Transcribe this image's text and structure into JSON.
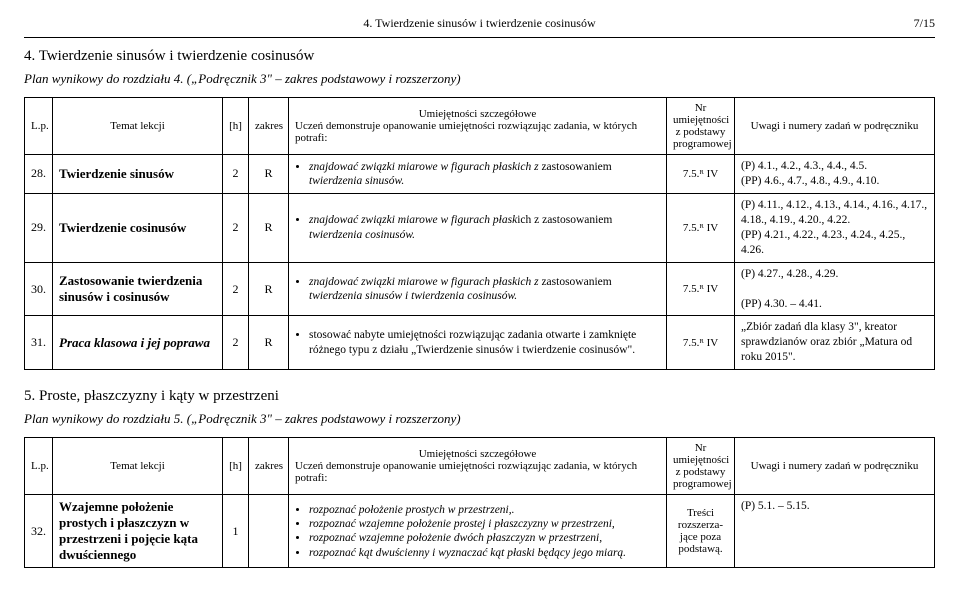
{
  "header": {
    "running_title": "4. Twierdzenie sinusów i twierdzenie cosinusów",
    "page_num": "7/15"
  },
  "section4": {
    "title": "4. Twierdzenie sinusów i twierdzenie cosinusów",
    "plan_line": "Plan wynikowy do rozdziału 4. („Podręcznik 3\" – zakres podstawowy i rozszerzony)",
    "header_row": {
      "lp": "L.p.",
      "topic": "Temat lekcji",
      "hours": "[h]",
      "zakres": "zakres",
      "skills_top": "Umiejętności szczegółowe",
      "skills_sub": "Uczeń demonstruje opanowanie umiejętności rozwiązując zadania, w których potrafi:",
      "nr_top": "Nr",
      "nr_sub": "umiejętności z podstawy programowej",
      "notes": "Uwagi i numery zadań w podręczniku"
    },
    "rows": [
      {
        "lp": "28.",
        "topic_bold": "Twierdzenie sinusów",
        "hours": "2",
        "zakres": "R",
        "skill_pre": "znajdować związki miarowe w figurach płaskich z ",
        "skill_up": "zastosowaniem",
        "skill_post": " twierdzenia sinusów.",
        "nr": "7.5.ᴿ IV",
        "notes": "(P) 4.1., 4.2., 4.3., 4.4., 4.5.\n(PP) 4.6., 4.7., 4.8., 4.9., 4.10."
      },
      {
        "lp": "29.",
        "topic_bold": "Twierdzenie cosinusów",
        "hours": "2",
        "zakres": "R",
        "skill_pre": "znajdować związki miarowe w figurach płask",
        "skill_up": "ich z zastosowaniem",
        "skill_post": " twierdzenia cosinusów.",
        "nr": "7.5.ᴿ IV",
        "notes": "(P) 4.11., 4.12., 4.13., 4.14., 4.16., 4.17., 4.18., 4.19., 4.20., 4.22.\n(PP) 4.21., 4.22., 4.23., 4.24., 4.25., 4.26."
      },
      {
        "lp": "30.",
        "topic_bold": "Zastosowanie twierdzenia sinusów i cosinusów",
        "hours": "2",
        "zakres": "R",
        "skill_pre": "znajdować związki miarowe w figurach płaskich z ",
        "skill_up": "zastosowaniem",
        "skill_post": " twierdzenia sinusów i twierdzenia cosinusów.",
        "nr": "7.5.ᴿ IV",
        "notes": "(P) 4.27., 4.28., 4.29.\n\n(PP) 4.30. – 4.41."
      },
      {
        "lp": "31.",
        "topic_bolditalic": "Praca klasowa i jej poprawa",
        "hours": "2",
        "zakres": "R",
        "skill_plain": "stosować nabyte umiejętności rozwiązując zadania otwarte i zamknięte różnego typu z działu „Twierdzenie sinusów i twierdzenie cosinusów\".",
        "nr": "7.5.ᴿ IV",
        "notes": "„Zbiór zadań dla klasy 3\", kreator sprawdzianów oraz zbiór „Matura od roku 2015\"."
      }
    ]
  },
  "section5": {
    "title": "5. Proste, płaszczyzny i kąty w przestrzeni",
    "plan_line": "Plan wynikowy do rozdziału 5. („Podręcznik 3\" – zakres podstawowy i rozszerzony)",
    "rows": [
      {
        "lp": "32.",
        "topic_bold": "Wzajemne położenie prostych i płaszczyzn w przestrzeni i pojęcie kąta dwuściennego",
        "hours": "1",
        "zakres": "",
        "skills": [
          "rozpoznać położenie prostych w przestrzeni,.",
          "rozpoznać wzajemne położenie prostej i płaszczyzny w przestrzeni,",
          "rozpoznać wzajemne położenie dwóch płaszczyzn w przestrzeni,",
          "rozpoznać kąt dwuścienny i wyznaczać kąt płaski będący jego miarą."
        ],
        "nr": "Treści rozszerza-jące poza podstawą.",
        "notes": "(P) 5.1. – 5.15."
      }
    ]
  }
}
